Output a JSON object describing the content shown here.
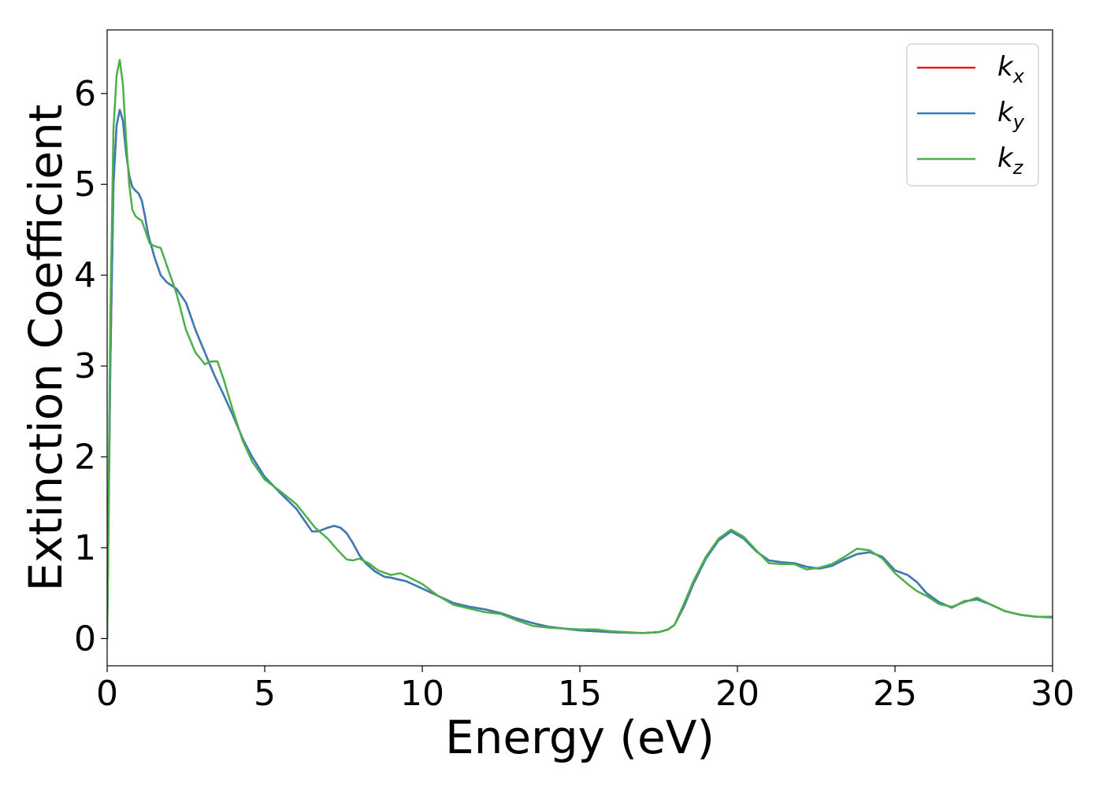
{
  "chart_data": {
    "type": "line",
    "xlabel": "Energy (eV)",
    "ylabel": "Extinction Coefficient",
    "xlim": [
      0,
      30
    ],
    "ylim": [
      -0.3,
      6.7
    ],
    "xticks": [
      0,
      5,
      10,
      15,
      20,
      25,
      30
    ],
    "yticks": [
      0,
      1,
      2,
      3,
      4,
      5,
      6
    ],
    "grid": false,
    "legend_position": "top-right",
    "series": [
      {
        "name": "k_x",
        "label_base": "k",
        "label_sub": "x",
        "color": "#e41a1c",
        "x": [
          0,
          0.1,
          0.2,
          0.3,
          0.4,
          0.5,
          0.6,
          0.7,
          0.8,
          0.9,
          1.0,
          1.1,
          1.2,
          1.3,
          1.5,
          1.7,
          1.9,
          2.2,
          2.5,
          2.8,
          3.1,
          3.4,
          3.7,
          4.0,
          4.3,
          4.6,
          5.0,
          5.5,
          6.0,
          6.3,
          6.5,
          6.7,
          7.0,
          7.2,
          7.4,
          7.6,
          7.8,
          8.0,
          8.2,
          8.5,
          8.8,
          9.0,
          9.5,
          10.0,
          10.5,
          11.0,
          11.5,
          12.0,
          12.5,
          13.0,
          13.5,
          14.0,
          14.5,
          15.0,
          15.5,
          16.0,
          16.5,
          17.0,
          17.5,
          17.8,
          18.0,
          18.3,
          18.6,
          19.0,
          19.4,
          19.8,
          20.2,
          20.6,
          21.0,
          21.4,
          21.8,
          22.2,
          22.6,
          23.0,
          23.4,
          23.8,
          24.2,
          24.6,
          25.0,
          25.4,
          25.7,
          26.0,
          26.4,
          26.8,
          27.2,
          27.6,
          28.0,
          28.5,
          29.0,
          29.5,
          30.0
        ],
        "y": [
          0.0,
          3.0,
          5.0,
          5.65,
          5.82,
          5.7,
          5.35,
          5.1,
          4.97,
          4.93,
          4.9,
          4.82,
          4.65,
          4.45,
          4.2,
          4.0,
          3.92,
          3.85,
          3.7,
          3.4,
          3.15,
          2.9,
          2.68,
          2.45,
          2.2,
          2.0,
          1.78,
          1.6,
          1.43,
          1.28,
          1.18,
          1.18,
          1.22,
          1.24,
          1.22,
          1.16,
          1.05,
          0.92,
          0.83,
          0.74,
          0.68,
          0.67,
          0.63,
          0.55,
          0.47,
          0.39,
          0.35,
          0.32,
          0.28,
          0.22,
          0.17,
          0.13,
          0.11,
          0.09,
          0.08,
          0.07,
          0.065,
          0.06,
          0.07,
          0.1,
          0.15,
          0.35,
          0.6,
          0.88,
          1.08,
          1.18,
          1.1,
          0.96,
          0.86,
          0.84,
          0.83,
          0.79,
          0.77,
          0.8,
          0.87,
          0.93,
          0.95,
          0.9,
          0.75,
          0.7,
          0.62,
          0.5,
          0.4,
          0.34,
          0.41,
          0.43,
          0.38,
          0.3,
          0.26,
          0.24,
          0.24
        ]
      },
      {
        "name": "k_y",
        "label_base": "k",
        "label_sub": "y",
        "color": "#377eb8",
        "x": [
          0,
          0.1,
          0.2,
          0.3,
          0.4,
          0.5,
          0.6,
          0.7,
          0.8,
          0.9,
          1.0,
          1.1,
          1.2,
          1.3,
          1.5,
          1.7,
          1.9,
          2.2,
          2.5,
          2.8,
          3.1,
          3.4,
          3.7,
          4.0,
          4.3,
          4.6,
          5.0,
          5.5,
          6.0,
          6.3,
          6.5,
          6.7,
          7.0,
          7.2,
          7.4,
          7.6,
          7.8,
          8.0,
          8.2,
          8.5,
          8.8,
          9.0,
          9.5,
          10.0,
          10.5,
          11.0,
          11.5,
          12.0,
          12.5,
          13.0,
          13.5,
          14.0,
          14.5,
          15.0,
          15.5,
          16.0,
          16.5,
          17.0,
          17.5,
          17.8,
          18.0,
          18.3,
          18.6,
          19.0,
          19.4,
          19.8,
          20.2,
          20.6,
          21.0,
          21.4,
          21.8,
          22.2,
          22.6,
          23.0,
          23.4,
          23.8,
          24.2,
          24.6,
          25.0,
          25.4,
          25.7,
          26.0,
          26.4,
          26.8,
          27.2,
          27.6,
          28.0,
          28.5,
          29.0,
          29.5,
          30.0
        ],
        "y": [
          0.0,
          3.0,
          5.0,
          5.65,
          5.82,
          5.7,
          5.35,
          5.1,
          4.97,
          4.93,
          4.9,
          4.82,
          4.65,
          4.45,
          4.2,
          4.0,
          3.92,
          3.85,
          3.7,
          3.4,
          3.15,
          2.9,
          2.68,
          2.45,
          2.2,
          2.0,
          1.78,
          1.6,
          1.43,
          1.28,
          1.18,
          1.18,
          1.22,
          1.24,
          1.22,
          1.16,
          1.05,
          0.92,
          0.83,
          0.74,
          0.68,
          0.67,
          0.63,
          0.55,
          0.47,
          0.39,
          0.35,
          0.32,
          0.28,
          0.22,
          0.17,
          0.13,
          0.11,
          0.09,
          0.08,
          0.07,
          0.065,
          0.06,
          0.07,
          0.1,
          0.15,
          0.35,
          0.6,
          0.88,
          1.08,
          1.18,
          1.1,
          0.96,
          0.86,
          0.84,
          0.83,
          0.79,
          0.77,
          0.8,
          0.87,
          0.93,
          0.95,
          0.9,
          0.75,
          0.7,
          0.62,
          0.5,
          0.4,
          0.34,
          0.41,
          0.43,
          0.38,
          0.3,
          0.26,
          0.24,
          0.24
        ]
      },
      {
        "name": "k_z",
        "label_base": "k",
        "label_sub": "z",
        "color": "#4daf4a",
        "x": [
          0,
          0.1,
          0.2,
          0.3,
          0.4,
          0.5,
          0.6,
          0.7,
          0.8,
          0.9,
          1.0,
          1.1,
          1.2,
          1.35,
          1.5,
          1.7,
          1.9,
          2.2,
          2.5,
          2.8,
          3.1,
          3.3,
          3.5,
          3.7,
          4.0,
          4.3,
          4.6,
          5.0,
          5.5,
          6.0,
          6.3,
          6.6,
          7.0,
          7.3,
          7.6,
          7.8,
          8.0,
          8.3,
          8.6,
          9.0,
          9.3,
          9.6,
          10.0,
          10.5,
          11.0,
          11.5,
          12.0,
          12.5,
          13.0,
          13.5,
          14.0,
          14.5,
          15.0,
          15.5,
          16.0,
          16.5,
          17.0,
          17.5,
          17.8,
          18.0,
          18.3,
          18.6,
          19.0,
          19.4,
          19.8,
          20.2,
          20.6,
          21.0,
          21.4,
          21.8,
          22.2,
          22.6,
          23.0,
          23.4,
          23.8,
          24.2,
          24.6,
          25.0,
          25.4,
          25.7,
          26.0,
          26.4,
          26.8,
          27.2,
          27.6,
          28.0,
          28.5,
          29.0,
          29.5,
          30.0
        ],
        "y": [
          0.0,
          3.5,
          5.6,
          6.2,
          6.37,
          6.1,
          5.5,
          5.0,
          4.72,
          4.65,
          4.62,
          4.6,
          4.5,
          4.35,
          4.32,
          4.3,
          4.1,
          3.8,
          3.4,
          3.15,
          3.02,
          3.05,
          3.05,
          2.85,
          2.5,
          2.18,
          1.95,
          1.75,
          1.62,
          1.48,
          1.35,
          1.22,
          1.1,
          0.98,
          0.87,
          0.86,
          0.88,
          0.83,
          0.75,
          0.7,
          0.72,
          0.67,
          0.6,
          0.47,
          0.37,
          0.33,
          0.29,
          0.27,
          0.2,
          0.14,
          0.12,
          0.11,
          0.1,
          0.1,
          0.08,
          0.07,
          0.06,
          0.07,
          0.1,
          0.15,
          0.38,
          0.63,
          0.9,
          1.1,
          1.2,
          1.12,
          0.97,
          0.83,
          0.82,
          0.82,
          0.76,
          0.78,
          0.82,
          0.9,
          0.99,
          0.97,
          0.88,
          0.72,
          0.6,
          0.52,
          0.47,
          0.38,
          0.35,
          0.4,
          0.45,
          0.38,
          0.3,
          0.26,
          0.24,
          0.23
        ]
      }
    ]
  }
}
